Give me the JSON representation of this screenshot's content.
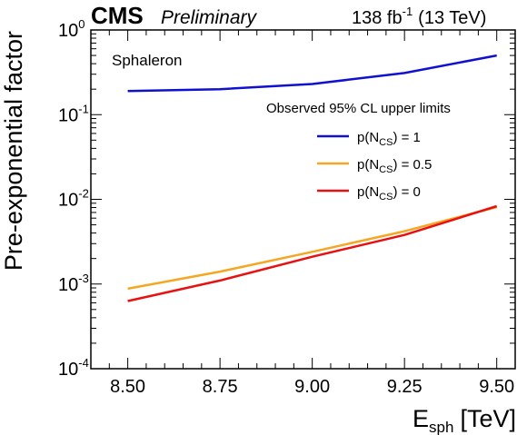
{
  "header": {
    "cms": "CMS",
    "preliminary": "Preliminary",
    "lumi": "138 fb",
    "lumi_exp": "-1",
    "energy": "(13 TeV)"
  },
  "annotation": "Sphaleron",
  "colors": {
    "p1": "#1010d0",
    "p05": "#f5a623",
    "p0": "#e81010"
  },
  "chart_data": {
    "type": "line",
    "title": "",
    "xlabel_main": "E",
    "xlabel_sub": "sph",
    "xlabel_unit": "[TeV]",
    "ylabel": "Pre-exponential factor",
    "y_scale": "log",
    "xlim": [
      8.4,
      9.55
    ],
    "ylim": [
      0.0001,
      1
    ],
    "x_ticks": [
      "8.50",
      "8.75",
      "9.00",
      "9.25",
      "9.50"
    ],
    "x_tick_values": [
      8.5,
      8.75,
      9.0,
      9.25,
      9.5
    ],
    "y_ticks": [
      {
        "base": "10",
        "exp": "0"
      },
      {
        "base": "10",
        "exp": "-1"
      },
      {
        "base": "10",
        "exp": "-2"
      },
      {
        "base": "10",
        "exp": "-3"
      },
      {
        "base": "10",
        "exp": "-4"
      }
    ],
    "y_tick_values": [
      1,
      0.1,
      0.01,
      0.001,
      0.0001
    ],
    "legend_title": "Observed 95% CL upper limits",
    "legend_position": "right",
    "series": [
      {
        "name_prefix": "p(N",
        "name_sub": "CS",
        "name_suffix": ") = 1",
        "color_key": "p1",
        "x": [
          8.5,
          8.75,
          9.0,
          9.25,
          9.5
        ],
        "y": [
          0.19,
          0.2,
          0.23,
          0.31,
          0.5
        ]
      },
      {
        "name_prefix": "p(N",
        "name_sub": "CS",
        "name_suffix": ") = 0.5",
        "color_key": "p05",
        "x": [
          8.5,
          8.75,
          9.0,
          9.25,
          9.5
        ],
        "y": [
          0.00088,
          0.0014,
          0.0024,
          0.0042,
          0.0081
        ]
      },
      {
        "name_prefix": "p(N",
        "name_sub": "CS",
        "name_suffix": ") = 0",
        "color_key": "p0",
        "x": [
          8.5,
          8.75,
          9.0,
          9.25,
          9.5
        ],
        "y": [
          0.00063,
          0.0011,
          0.0021,
          0.0038,
          0.0083
        ]
      }
    ]
  }
}
